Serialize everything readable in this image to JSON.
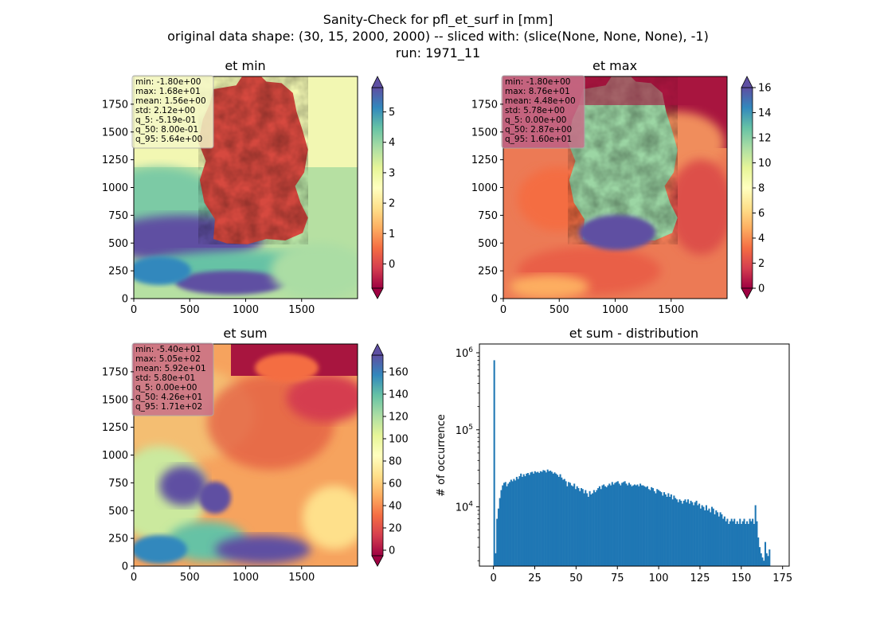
{
  "figure": {
    "title_lines": [
      "Sanity-Check for pfl_et_surf in [mm]",
      "original data shape: (30, 15, 2000, 2000) -- sliced with: (slice(None, None, None), -1)",
      "run: 1971_11"
    ]
  },
  "colors": {
    "histogram_bar": "#1f77b4",
    "stats_box_min": "#f5f7c8",
    "stats_box_other": "#c9718a",
    "colormap": "Spectral"
  },
  "chart_data": [
    {
      "type": "heatmap",
      "title": "et min",
      "colormap": "Spectral",
      "xlim": [
        0,
        2000
      ],
      "ylim": [
        0,
        2000
      ],
      "xticks": [
        0,
        500,
        1000,
        1500
      ],
      "yticks": [
        0,
        250,
        500,
        750,
        1000,
        1250,
        1500,
        1750
      ],
      "colorbar": {
        "range": [
          -0.8,
          5.8
        ],
        "ticks": [
          0,
          1,
          2,
          3,
          4,
          5
        ],
        "extend": "both"
      },
      "stats": {
        "min": "-1.80e+00",
        "max": "1.68e+01",
        "mean": "1.56e+00",
        "std": "2.12e+00",
        "q_5": "-5.19e-01",
        "q_50": "8.00e-01",
        "q_95": "5.64e+00"
      }
    },
    {
      "type": "heatmap",
      "title": "et max",
      "colormap": "Spectral",
      "xlim": [
        0,
        2000
      ],
      "ylim": [
        0,
        2000
      ],
      "xticks": [
        0,
        500,
        1000,
        1500
      ],
      "yticks": [
        0,
        250,
        500,
        750,
        1000,
        1250,
        1500,
        1750
      ],
      "colorbar": {
        "range": [
          0,
          16
        ],
        "ticks": [
          0,
          2,
          4,
          6,
          8,
          10,
          12,
          14,
          16
        ],
        "extend": "both"
      },
      "stats": {
        "min": "-1.80e+00",
        "max": "8.76e+01",
        "mean": "4.48e+00",
        "std": "5.78e+00",
        "q_5": "0.00e+00",
        "q_50": "2.87e+00",
        "q_95": "1.60e+01"
      }
    },
    {
      "type": "heatmap",
      "title": "et sum",
      "colormap": "Spectral",
      "xlim": [
        0,
        2000
      ],
      "ylim": [
        0,
        2000
      ],
      "xticks": [
        0,
        500,
        1000,
        1500
      ],
      "yticks": [
        0,
        250,
        500,
        750,
        1000,
        1250,
        1500,
        1750
      ],
      "colorbar": {
        "range": [
          -5,
          175
        ],
        "ticks": [
          0,
          20,
          40,
          60,
          80,
          100,
          120,
          140,
          160
        ],
        "extend": "both"
      },
      "stats": {
        "min": "-5.40e+01",
        "max": "5.05e+02",
        "mean": "5.92e+01",
        "std": "5.80e+01",
        "q_5": "0.00e+00",
        "q_50": "4.26e+01",
        "q_95": "1.71e+02"
      }
    },
    {
      "type": "bar",
      "title": "et sum - distribution",
      "xlabel": "",
      "ylabel": "# of occurrence",
      "yscale": "log",
      "xlim": [
        -8.5,
        179
      ],
      "ylim": [
        1700,
        1300000
      ],
      "xticks": [
        0,
        25,
        50,
        75,
        100,
        125,
        150,
        175
      ],
      "yticks": [
        {
          "value": 10000,
          "base": "10",
          "exp": "4"
        },
        {
          "value": 100000,
          "base": "10",
          "exp": "5"
        },
        {
          "value": 1000000,
          "base": "10",
          "exp": "6"
        }
      ],
      "bin_start": 0,
      "bin_width": 0.85,
      "values": [
        800000,
        2500,
        7000,
        9500,
        13000,
        16500,
        19000,
        20500,
        21000,
        18500,
        20000,
        21000,
        22500,
        21500,
        23000,
        22000,
        24500,
        23000,
        25000,
        27000,
        24500,
        26500,
        25000,
        27000,
        27500,
        26000,
        28000,
        28500,
        27000,
        29000,
        28000,
        28500,
        27500,
        29000,
        28500,
        30000,
        29500,
        28000,
        30500,
        29000,
        29500,
        28500,
        27000,
        28000,
        27000,
        26000,
        24500,
        26500,
        24000,
        22500,
        23000,
        21500,
        18500,
        21000,
        20500,
        19000,
        18500,
        20000,
        17000,
        18500,
        17500,
        16000,
        17500,
        17000,
        15000,
        16500,
        15000,
        13500,
        16000,
        14500,
        15000,
        16500,
        15500,
        16500,
        17500,
        18500,
        17000,
        19000,
        19500,
        18500,
        18000,
        19000,
        20000,
        19000,
        21000,
        19500,
        20500,
        21000,
        21500,
        20000,
        19000,
        20500,
        21000,
        21500,
        20000,
        19000,
        20500,
        19500,
        18500,
        19000,
        19500,
        19000,
        19500,
        18500,
        20000,
        19000,
        19000,
        18500,
        18000,
        18500,
        17000,
        16500,
        18000,
        17500,
        16000,
        15000,
        17000,
        16500,
        16000,
        15500,
        14000,
        15500,
        14500,
        13500,
        15000,
        13500,
        14500,
        12500,
        14000,
        13000,
        12500,
        11500,
        12500,
        12000,
        11000,
        12000,
        12500,
        11500,
        12500,
        11000,
        12000,
        11500,
        10500,
        11500,
        12000,
        10500,
        11000,
        9500,
        10500,
        10000,
        9000,
        10500,
        9000,
        9500,
        8500,
        10000,
        9500,
        8000,
        9000,
        8500,
        7500,
        8500,
        8000,
        7000,
        7500,
        6500,
        7000,
        6000,
        6500,
        7000,
        6500,
        7000,
        6000,
        6500,
        6000,
        7000,
        6000,
        6500,
        7000,
        6000,
        6500,
        6000,
        7000,
        6500,
        7000,
        6000,
        10500,
        6500,
        4000,
        3000,
        2500,
        2200,
        2000,
        3500,
        2500,
        2300,
        2800
      ]
    }
  ]
}
